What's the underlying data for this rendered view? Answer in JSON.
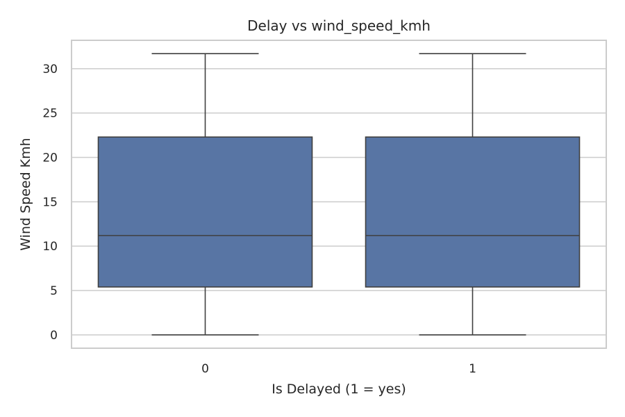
{
  "chart_data": {
    "type": "box",
    "title": "Delay vs wind_speed_kmh",
    "xlabel": "Is Delayed (1 = yes)",
    "ylabel": "Wind Speed Kmh",
    "categories": [
      "0",
      "1"
    ],
    "boxes": [
      {
        "category": "0",
        "whisker_low": 0.0,
        "q1": 5.4,
        "median": 11.2,
        "q3": 22.3,
        "whisker_high": 31.7
      },
      {
        "category": "1",
        "whisker_low": 0.0,
        "q1": 5.4,
        "median": 11.2,
        "q3": 22.3,
        "whisker_high": 31.7
      }
    ],
    "ylim": [
      -1.5,
      33.2
    ],
    "yticks": [
      0,
      5,
      10,
      15,
      20,
      25,
      30
    ],
    "grid": "horizontal",
    "colors": {
      "box_fill": "#5875a4",
      "line": "#3f3f3f",
      "grid": "#cccccc",
      "spine": "#cccccc",
      "text": "#262626"
    }
  }
}
